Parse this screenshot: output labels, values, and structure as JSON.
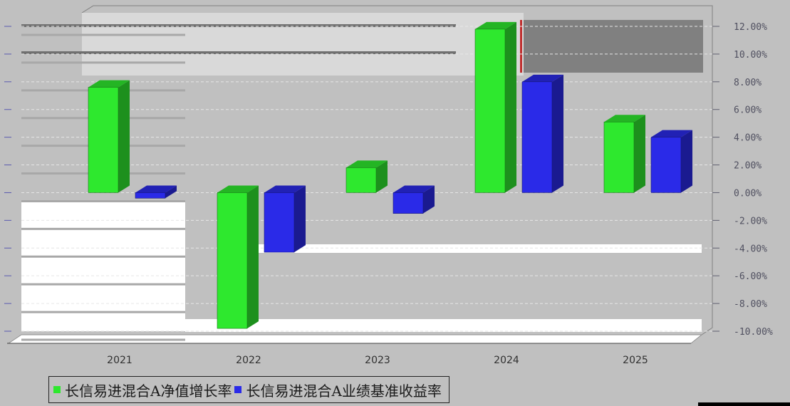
{
  "chart_data": {
    "type": "bar",
    "categories": [
      "2021",
      "2022",
      "2023",
      "2024",
      "2025"
    ],
    "series": [
      {
        "name": "长信易进混合A净值增长率",
        "color": "#2ee82e",
        "values": [
          7.6,
          -9.8,
          1.8,
          11.8,
          5.1
        ]
      },
      {
        "name": "长信易进混合A业绩基准收益率",
        "color": "#2a2ae8",
        "values": [
          -0.4,
          -4.3,
          -1.5,
          8.0,
          4.0
        ]
      }
    ],
    "y_ticks": [
      "12.00%",
      "10.00%",
      "8.00%",
      "6.00%",
      "4.00%",
      "2.00%",
      "0.00%",
      "-2.00%",
      "-4.00%",
      "-6.00%",
      "-8.00%",
      "-10.00%"
    ],
    "ylim": [
      -10,
      12
    ],
    "y_axis_position": "right",
    "grid": true,
    "legend_position": "bottom-left"
  }
}
